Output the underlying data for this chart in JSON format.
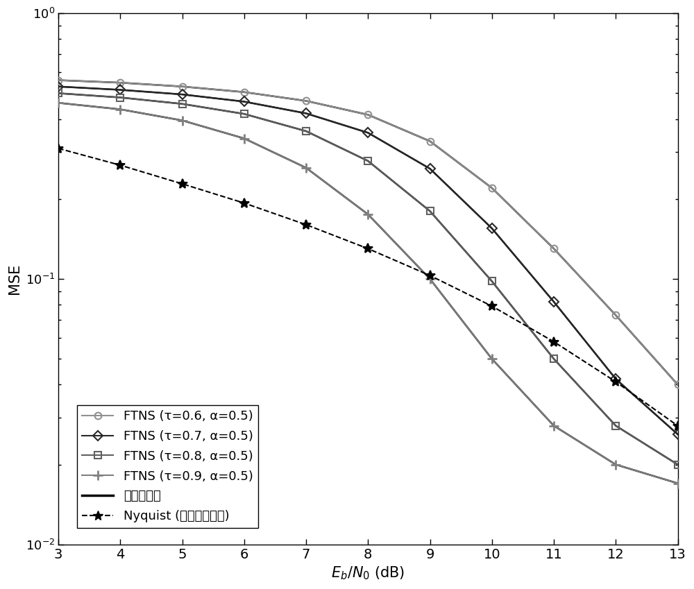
{
  "xlabel": "E_b/N_0 (dB)",
  "ylabel": "MSE",
  "xlim": [
    3,
    13
  ],
  "ylim": [
    0.01,
    1.0
  ],
  "xticks": [
    3,
    4,
    5,
    6,
    7,
    8,
    9,
    10,
    11,
    12,
    13
  ],
  "snr": [
    3,
    4,
    5,
    6,
    7,
    8,
    9,
    10,
    11,
    12,
    13
  ],
  "ftns06": [
    0.56,
    0.548,
    0.53,
    0.505,
    0.468,
    0.415,
    0.33,
    0.22,
    0.13,
    0.073,
    0.04
  ],
  "ftns07": [
    0.53,
    0.515,
    0.495,
    0.465,
    0.42,
    0.355,
    0.26,
    0.155,
    0.082,
    0.042,
    0.026
  ],
  "ftns08": [
    0.5,
    0.482,
    0.456,
    0.418,
    0.36,
    0.278,
    0.18,
    0.098,
    0.05,
    0.028,
    0.02
  ],
  "ftns09": [
    0.46,
    0.435,
    0.395,
    0.338,
    0.262,
    0.175,
    0.1,
    0.05,
    0.028,
    0.02,
    0.017
  ],
  "nyquist": [
    0.31,
    0.268,
    0.228,
    0.193,
    0.16,
    0.13,
    0.103,
    0.079,
    0.058,
    0.041,
    0.028
  ],
  "color_ftns06": "#909090",
  "color_ftns07": "#282828",
  "color_ftns08": "#606060",
  "color_ftns09": "#808080",
  "color_proposed": "#000000",
  "color_nyquist": "#000000",
  "legend_labels": [
    "FTNS (τ=0.6, α=0.5)",
    "FTNS (τ=0.7, α=0.5)",
    "FTNS (τ=0.8, α=0.5)",
    "FTNS (τ=0.9, α=0.5)",
    "提出的算法",
    "Nyquist (信道信息已知)"
  ],
  "figsize": [
    10.0,
    8.49
  ],
  "dpi": 100
}
